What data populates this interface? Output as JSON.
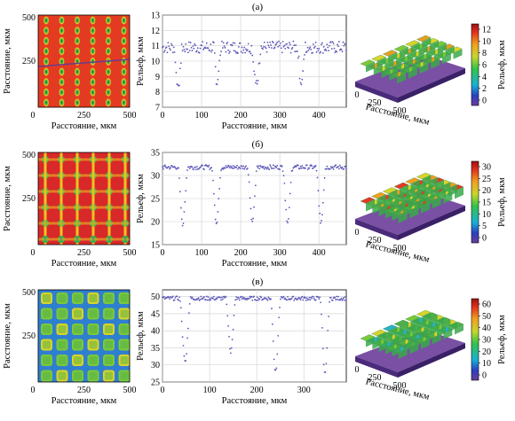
{
  "chart_data": [
    {
      "panel": "а",
      "map": {
        "type": "heatmap",
        "xlabel": "Расстояние, мкм",
        "ylabel": "Расстояние, мкм",
        "xticks": [
          "0",
          "250",
          "500"
        ],
        "yticks": [
          "500",
          "250"
        ],
        "xlim": [
          0,
          500
        ],
        "ylim": [
          0,
          500
        ],
        "grid": "9x6 spots"
      },
      "profile": {
        "type": "scatter",
        "xlabel": "Расстояние, мкм",
        "ylabel": "Рельеф, мкм",
        "xlim": [
          0,
          470
        ],
        "ylim": [
          7,
          13
        ],
        "xticks": [
          "0",
          "100",
          "200",
          "300",
          "400"
        ],
        "yticks": [
          "7",
          "8",
          "9",
          "10",
          "11",
          "12",
          "13"
        ],
        "base": 10.9,
        "noise": 0.4,
        "dips": [
          [
            40,
            8.2,
            11
          ],
          [
            140,
            8.7,
            11
          ],
          [
            240,
            8.3,
            12
          ],
          [
            355,
            8.6,
            11
          ]
        ]
      },
      "surface": {
        "type": "surface3d",
        "xlabel": "Расстояние, мкм",
        "ticks": [
          "0",
          "250",
          "500"
        ],
        "cols": 6,
        "rows": 5
      },
      "colorbar": {
        "label": "Рельеф, мкм",
        "ticks": [
          "12",
          "10",
          "8",
          "6",
          "4",
          "2",
          "0"
        ]
      }
    },
    {
      "panel": "б",
      "map": {
        "type": "heatmap",
        "xlabel": "Расстояние, мкм",
        "ylabel": "Расстояние, мкм",
        "xticks": [
          "0",
          "250",
          "500"
        ],
        "yticks": [
          "500",
          "250"
        ],
        "xlim": [
          0,
          500
        ],
        "ylim": [
          0,
          500
        ],
        "grid": "6x6 grid"
      },
      "profile": {
        "type": "scatter",
        "xlabel": "Расстояние, мкм",
        "ylabel": "Рельеф, мкм",
        "xlim": [
          0,
          470
        ],
        "ylim": [
          15,
          35
        ],
        "xticks": [
          "0",
          "100",
          "200",
          "300",
          "400"
        ],
        "yticks": [
          "15",
          "20",
          "25",
          "30",
          "35"
        ],
        "base": 31.8,
        "noise": 0.5,
        "dips": [
          [
            52,
            19.5,
            13
          ],
          [
            138,
            20,
            13
          ],
          [
            230,
            20,
            13
          ],
          [
            320,
            20,
            13
          ],
          [
            405,
            20,
            13
          ]
        ]
      },
      "surface": {
        "type": "surface3d",
        "xlabel": "Расстояние, мкм",
        "ticks": [
          "0",
          "250",
          "500"
        ],
        "cols": 6,
        "rows": 6
      },
      "colorbar": {
        "label": "Рельеф, мкм",
        "ticks": [
          "30",
          "25",
          "20",
          "15",
          "10",
          "5",
          "0"
        ]
      }
    },
    {
      "panel": "в",
      "map": {
        "type": "heatmap",
        "xlabel": "Расстояние, мкм",
        "ylabel": "Расстояние, мкм",
        "xticks": [
          "0",
          "250",
          "500"
        ],
        "yticks": [
          "500",
          "250"
        ],
        "xlim": [
          0,
          500
        ],
        "ylim": [
          0,
          500
        ],
        "grid": "6x6 grid"
      },
      "profile": {
        "type": "scatter",
        "xlabel": "Расстояние, мкм",
        "ylabel": "Рельеф, мкм",
        "xlim": [
          0,
          390
        ],
        "ylim": [
          25,
          52
        ],
        "xticks": [
          "0",
          "100",
          "200",
          "300"
        ],
        "yticks": [
          "25",
          "30",
          "35",
          "40",
          "45",
          "50"
        ],
        "base": 49.5,
        "noise": 0.6,
        "dips": [
          [
            48,
            31,
            12
          ],
          [
            145,
            34,
            11
          ],
          [
            240,
            28,
            11
          ],
          [
            345,
            27.5,
            11
          ]
        ]
      },
      "surface": {
        "type": "surface3d",
        "xlabel": "Расстояние, мкм",
        "ticks": [
          "0",
          "250",
          "500"
        ],
        "cols": 6,
        "rows": 6
      },
      "colorbar": {
        "label": "Рельеф, мкм",
        "ticks": [
          "60",
          "50",
          "40",
          "30",
          "20",
          "10",
          "0"
        ]
      }
    }
  ]
}
